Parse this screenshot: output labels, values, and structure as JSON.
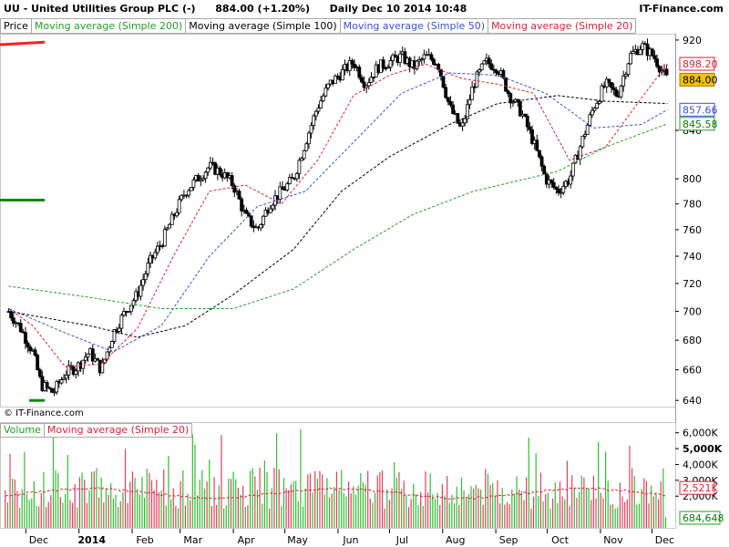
{
  "header": {
    "symbol": "UU",
    "name": "United Utilities Group PLC (-)",
    "price_change": "884.00 (+1.20%)",
    "period": "Daily",
    "datetime": "Dec 10 2014 10:48",
    "source": "IT-Finance.com"
  },
  "legend": {
    "price": "Price",
    "ma200": "Moving average (Simple 200)",
    "ma100": "Moving average (Simple 100)",
    "ma50": "Moving average (Simple 50)",
    "ma20": "Moving average (Simple 20)"
  },
  "volume_legend": {
    "volume": "Volume",
    "ma20": "Moving average (Simple 20)"
  },
  "copyright": "© IT-Finance.com",
  "colors": {
    "ma200": "#22a022",
    "ma100": "#000000",
    "ma50": "#3b4fe0",
    "ma20": "#e0203a",
    "resistance": "#ff2020",
    "support": "#0b8a0b",
    "vol_up": "#33bb33",
    "vol_down": "#e0405a"
  },
  "chart_data": [
    {
      "type": "line",
      "title": "UU - United Utilities Group PLC (-)",
      "x_ticks": [
        "Dec",
        "2014",
        "Feb",
        "Mar",
        "Apr",
        "May",
        "Jun",
        "Jul",
        "Aug",
        "Sep",
        "Oct",
        "Nov",
        "Dec"
      ],
      "y_ticks": [
        640,
        660,
        680,
        700,
        720,
        740,
        760,
        780,
        800,
        840,
        920
      ],
      "ylim": [
        636,
        925
      ],
      "y_scale": "log",
      "value_labels": {
        "ma20": "898.20",
        "price": "884.00",
        "ma50": "857.66",
        "ma200": "845.58"
      },
      "series": [
        {
          "name": "Price",
          "points": [
            [
              "Nov 21",
              700
            ],
            [
              "Nov 28",
              688
            ],
            [
              "Dec 5",
              672
            ],
            [
              "Dec 10",
              650
            ],
            [
              "Dec 17",
              645
            ],
            [
              "Dec 24",
              658
            ],
            [
              "Dec 31",
              662
            ],
            [
              "Jan 7",
              672
            ],
            [
              "Jan 14",
              660
            ],
            [
              "Jan 21",
              685
            ],
            [
              "Jan 28",
              700
            ],
            [
              "Feb 4",
              712
            ],
            [
              "Feb 11",
              735
            ],
            [
              "Feb 18",
              750
            ],
            [
              "Feb 25",
              770
            ],
            [
              "Mar 4",
              790
            ],
            [
              "Mar 11",
              800
            ],
            [
              "Mar 18",
              810
            ],
            [
              "Mar 25",
              805
            ],
            [
              "Apr 1",
              795
            ],
            [
              "Apr 8",
              770
            ],
            [
              "Apr 15",
              760
            ],
            [
              "Apr 22",
              780
            ],
            [
              "Apr 29",
              790
            ],
            [
              "May 6",
              800
            ],
            [
              "May 13",
              830
            ],
            [
              "May 20",
              860
            ],
            [
              "May 27",
              880
            ],
            [
              "Jun 3",
              890
            ],
            [
              "Jun 10",
              900
            ],
            [
              "Jun 17",
              880
            ],
            [
              "Jun 24",
              895
            ],
            [
              "Jul 1",
              900
            ],
            [
              "Jul 8",
              905
            ],
            [
              "Jul 15",
              895
            ],
            [
              "Jul 22",
              905
            ],
            [
              "Jul 29",
              900
            ],
            [
              "Aug 5",
              860
            ],
            [
              "Aug 12",
              840
            ],
            [
              "Aug 19",
              880
            ],
            [
              "Aug 26",
              900
            ],
            [
              "Sep 2",
              895
            ],
            [
              "Sep 9",
              870
            ],
            [
              "Sep 16",
              855
            ],
            [
              "Sep 23",
              830
            ],
            [
              "Sep 30",
              800
            ],
            [
              "Oct 7",
              790
            ],
            [
              "Oct 14",
              800
            ],
            [
              "Oct 21",
              830
            ],
            [
              "Oct 28",
              860
            ],
            [
              "Nov 4",
              880
            ],
            [
              "Nov 11",
              870
            ],
            [
              "Nov 18",
              905
            ],
            [
              "Nov 25",
              915
            ],
            [
              "Dec 2",
              905
            ],
            [
              "Dec 10",
              884
            ]
          ]
        },
        {
          "name": "Moving average (Simple 20)",
          "points": [
            [
              "Nov 21",
              702
            ],
            [
              "Dec 5",
              690
            ],
            [
              "Dec 24",
              662
            ],
            [
              "Jan 14",
              664
            ],
            [
              "Feb 4",
              688
            ],
            [
              "Feb 25",
              740
            ],
            [
              "Mar 18",
              790
            ],
            [
              "Apr 8",
              795
            ],
            [
              "Apr 29",
              780
            ],
            [
              "May 20",
              815
            ],
            [
              "Jun 10",
              870
            ],
            [
              "Jul 1",
              888
            ],
            [
              "Jul 22",
              898
            ],
            [
              "Aug 12",
              885
            ],
            [
              "Sep 2",
              880
            ],
            [
              "Sep 23",
              872
            ],
            [
              "Oct 14",
              815
            ],
            [
              "Nov 4",
              826
            ],
            [
              "Nov 25",
              868
            ],
            [
              "Dec 10",
              898.2
            ]
          ]
        },
        {
          "name": "Moving average (Simple 50)",
          "points": [
            [
              "Nov 21",
              702
            ],
            [
              "Dec 24",
              685
            ],
            [
              "Jan 21",
              672
            ],
            [
              "Feb 18",
              690
            ],
            [
              "Mar 18",
              740
            ],
            [
              "Apr 15",
              778
            ],
            [
              "May 13",
              790
            ],
            [
              "Jun 10",
              830
            ],
            [
              "Jul 8",
              872
            ],
            [
              "Aug 5",
              890
            ],
            [
              "Sep 2",
              888
            ],
            [
              "Sep 30",
              872
            ],
            [
              "Oct 28",
              842
            ],
            [
              "Nov 25",
              845
            ],
            [
              "Dec 10",
              857.66
            ]
          ]
        },
        {
          "name": "Moving average (Simple 100)",
          "points": [
            [
              "Nov 21",
              700
            ],
            [
              "Jan 7",
              690
            ],
            [
              "Feb 4",
              682
            ],
            [
              "Mar 4",
              690
            ],
            [
              "Apr 1",
              712
            ],
            [
              "May 6",
              745
            ],
            [
              "Jun 3",
              790
            ],
            [
              "Jul 1",
              818
            ],
            [
              "Aug 5",
              845
            ],
            [
              "Sep 2",
              863
            ],
            [
              "Oct 7",
              870
            ],
            [
              "Nov 4",
              865
            ],
            [
              "Dec 10",
              863
            ]
          ]
        },
        {
          "name": "Moving average (Simple 200)",
          "points": [
            [
              "Nov 21",
              718
            ],
            [
              "Jan 7",
              710
            ],
            [
              "Feb 18",
              702
            ],
            [
              "Apr 1",
              702
            ],
            [
              "May 6",
              716
            ],
            [
              "Jun 10",
              745
            ],
            [
              "Jul 15",
              772
            ],
            [
              "Aug 19",
              790
            ],
            [
              "Oct 7",
              806
            ],
            [
              "Nov 4",
              826
            ],
            [
              "Dec 10",
              845.58
            ]
          ]
        },
        {
          "name": "Resistance",
          "points": [
            [
              "May 18",
              900
            ],
            [
              "Dec 12",
              918
            ]
          ]
        },
        {
          "name": "Support 780",
          "points": [
            [
              "Sep 27",
              783
            ],
            [
              "Dec 12",
              783
            ]
          ]
        },
        {
          "name": "Support 640",
          "points": [
            [
              "Dec 3",
              640
            ],
            [
              "Dec 12",
              640
            ]
          ]
        }
      ]
    },
    {
      "type": "bar",
      "title": "Volume",
      "y_ticks": [
        "6,000K",
        "5,000K",
        "4,000K",
        "3,000K",
        "2,000K"
      ],
      "value_labels": {
        "ma20": "2,521K",
        "volume": "684,648"
      },
      "ylim": [
        0,
        6500
      ],
      "highlighted_tick": "5,000K"
    }
  ]
}
